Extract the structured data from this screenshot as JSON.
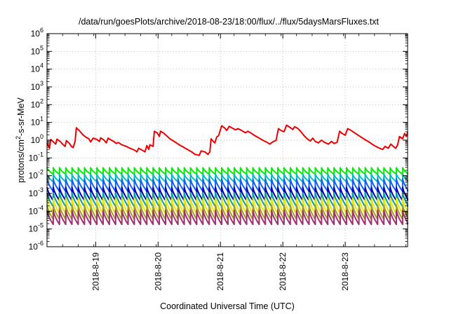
{
  "chart_data": {
    "type": "line",
    "title": "/data/run/goesPlots/archive/2018-08-23/18:00/flux/../flux/5daysMarsFluxes.txt",
    "xlabel": "Coordinated Universal Time (UTC)",
    "ylabel_parts": {
      "base": "protons/cm",
      "sup": "2",
      "rest": "-s-sr-MeV"
    },
    "yscale": "log",
    "ylim_exp": [
      -6,
      6
    ],
    "y_tick_base": "10",
    "y_tick_exponents": [
      "-6",
      "-5",
      "-4",
      "-3",
      "-2",
      "-1",
      "0",
      "1",
      "2",
      "3",
      "4",
      "5",
      "6"
    ],
    "xlim_days": [
      0,
      5.78
    ],
    "x_ticks": [
      {
        "label": "2018-8-19",
        "day": 0.78
      },
      {
        "label": "2018-8-20",
        "day": 1.78
      },
      {
        "label": "2018-8-21",
        "day": 2.78
      },
      {
        "label": "2018-8-22",
        "day": 3.78
      },
      {
        "label": "2018-8-23",
        "day": 4.78
      }
    ],
    "grid": true,
    "series": [
      {
        "color": "#ee0000",
        "points": [
          [
            0.0,
            0.7
          ],
          [
            0.04,
            0.35
          ],
          [
            0.06,
            1.1
          ],
          [
            0.11,
            0.75
          ],
          [
            0.14,
            0.6
          ],
          [
            0.16,
            1.15
          ],
          [
            0.21,
            0.85
          ],
          [
            0.26,
            0.55
          ],
          [
            0.29,
            0.45
          ],
          [
            0.31,
            0.95
          ],
          [
            0.36,
            0.65
          ],
          [
            0.39,
            0.45
          ],
          [
            0.42,
            0.38
          ],
          [
            0.45,
            0.85
          ],
          [
            0.47,
            5.0
          ],
          [
            0.52,
            3.4
          ],
          [
            0.57,
            2.1
          ],
          [
            0.62,
            1.5
          ],
          [
            0.67,
            1.2
          ],
          [
            0.7,
            0.8
          ],
          [
            0.74,
            1.3
          ],
          [
            0.8,
            1.1
          ],
          [
            0.84,
            0.85
          ],
          [
            0.86,
            1.35
          ],
          [
            0.91,
            1.05
          ],
          [
            0.95,
            0.7
          ],
          [
            0.98,
            1.3
          ],
          [
            1.03,
            1.0
          ],
          [
            1.07,
            0.85
          ],
          [
            1.11,
            0.65
          ],
          [
            1.14,
            0.75
          ],
          [
            1.2,
            0.55
          ],
          [
            1.27,
            0.45
          ],
          [
            1.33,
            0.35
          ],
          [
            1.4,
            0.28
          ],
          [
            1.44,
            0.22
          ],
          [
            1.47,
            0.35
          ],
          [
            1.52,
            0.28
          ],
          [
            1.57,
            0.22
          ],
          [
            1.6,
            0.5
          ],
          [
            1.63,
            0.3
          ],
          [
            1.65,
            0.55
          ],
          [
            1.7,
            0.45
          ],
          [
            1.72,
            3.2
          ],
          [
            1.77,
            2.5
          ],
          [
            1.8,
            1.6
          ],
          [
            1.82,
            3.2
          ],
          [
            1.87,
            2.5
          ],
          [
            1.9,
            2.0
          ],
          [
            1.97,
            1.2
          ],
          [
            2.05,
            0.8
          ],
          [
            2.12,
            0.55
          ],
          [
            2.19,
            0.4
          ],
          [
            2.25,
            0.3
          ],
          [
            2.32,
            0.22
          ],
          [
            2.37,
            0.16
          ],
          [
            2.44,
            0.14
          ],
          [
            2.47,
            0.25
          ],
          [
            2.53,
            0.22
          ],
          [
            2.58,
            0.16
          ],
          [
            2.61,
            0.22
          ],
          [
            2.63,
            1.2
          ],
          [
            2.66,
            0.9
          ],
          [
            2.69,
            0.7
          ],
          [
            2.72,
            1.5
          ],
          [
            2.75,
            1.8
          ],
          [
            2.8,
            6.5
          ],
          [
            2.85,
            4.8
          ],
          [
            2.88,
            3.5
          ],
          [
            2.92,
            6.0
          ],
          [
            2.97,
            4.8
          ],
          [
            3.02,
            3.8
          ],
          [
            3.06,
            4.5
          ],
          [
            3.12,
            3.5
          ],
          [
            3.18,
            2.6
          ],
          [
            3.22,
            3.2
          ],
          [
            3.28,
            2.4
          ],
          [
            3.33,
            1.8
          ],
          [
            3.37,
            1.5
          ],
          [
            3.42,
            1.2
          ],
          [
            3.47,
            0.95
          ],
          [
            3.53,
            0.75
          ],
          [
            3.57,
            0.6
          ],
          [
            3.63,
            0.85
          ],
          [
            3.67,
            0.95
          ],
          [
            3.71,
            4.5
          ],
          [
            3.75,
            3.5
          ],
          [
            3.8,
            3.0
          ],
          [
            3.84,
            7.0
          ],
          [
            3.89,
            5.4
          ],
          [
            3.94,
            4.0
          ],
          [
            3.97,
            5.8
          ],
          [
            4.02,
            4.6
          ],
          [
            4.07,
            3.0
          ],
          [
            4.12,
            1.8
          ],
          [
            4.17,
            1.2
          ],
          [
            4.22,
            0.9
          ],
          [
            4.26,
            1.3
          ],
          [
            4.3,
            0.85
          ],
          [
            4.35,
            0.7
          ],
          [
            4.4,
            1.0
          ],
          [
            4.45,
            0.75
          ],
          [
            4.51,
            0.6
          ],
          [
            4.56,
            0.85
          ],
          [
            4.6,
            0.65
          ],
          [
            4.65,
            0.75
          ],
          [
            4.69,
            3.2
          ],
          [
            4.73,
            2.4
          ],
          [
            4.78,
            1.9
          ],
          [
            4.82,
            4.5
          ],
          [
            4.87,
            3.6
          ],
          [
            4.91,
            2.9
          ],
          [
            4.96,
            2.2
          ],
          [
            5.01,
            1.7
          ],
          [
            5.06,
            1.3
          ],
          [
            5.11,
            1.0
          ],
          [
            5.16,
            0.8
          ],
          [
            5.21,
            0.6
          ],
          [
            5.27,
            0.45
          ],
          [
            5.33,
            0.35
          ],
          [
            5.38,
            0.3
          ],
          [
            5.42,
            0.45
          ],
          [
            5.47,
            0.35
          ],
          [
            5.51,
            0.6
          ],
          [
            5.55,
            0.45
          ],
          [
            5.59,
            0.35
          ],
          [
            5.62,
            0.55
          ],
          [
            5.65,
            1.6
          ],
          [
            5.7,
            1.2
          ],
          [
            5.73,
            2.4
          ],
          [
            5.76,
            1.6
          ],
          [
            5.78,
            2.8
          ]
        ]
      },
      {
        "color": "#00ee00",
        "sawtooth": {
          "peak": 0.028,
          "trough": 0.012,
          "period": 0.1
        }
      },
      {
        "color": "#00c0c0",
        "sawtooth": {
          "peak": 0.012,
          "trough": 0.0045,
          "period": 0.1
        }
      },
      {
        "color": "#1060ff",
        "sawtooth": {
          "peak": 0.0065,
          "trough": 0.0013,
          "period": 0.1
        }
      },
      {
        "color": "#0000b8",
        "sawtooth": {
          "peak": 0.0022,
          "trough": 0.0004,
          "period": 0.1
        }
      },
      {
        "color": "#00a0a0",
        "sawtooth": {
          "peak": 0.0011,
          "trough": 0.00018,
          "period": 0.1
        }
      },
      {
        "color": "#e8e800",
        "sawtooth": {
          "peak": 0.00055,
          "trough": 7e-05,
          "period": 0.1
        }
      },
      {
        "color": "#a0a020",
        "sawtooth": {
          "peak": 0.00022,
          "trough": 3.5e-05,
          "period": 0.1
        }
      },
      {
        "color": "#a03070",
        "sawtooth": {
          "peak": 0.00011,
          "trough": 1.8e-05,
          "period": 0.1
        }
      }
    ]
  }
}
